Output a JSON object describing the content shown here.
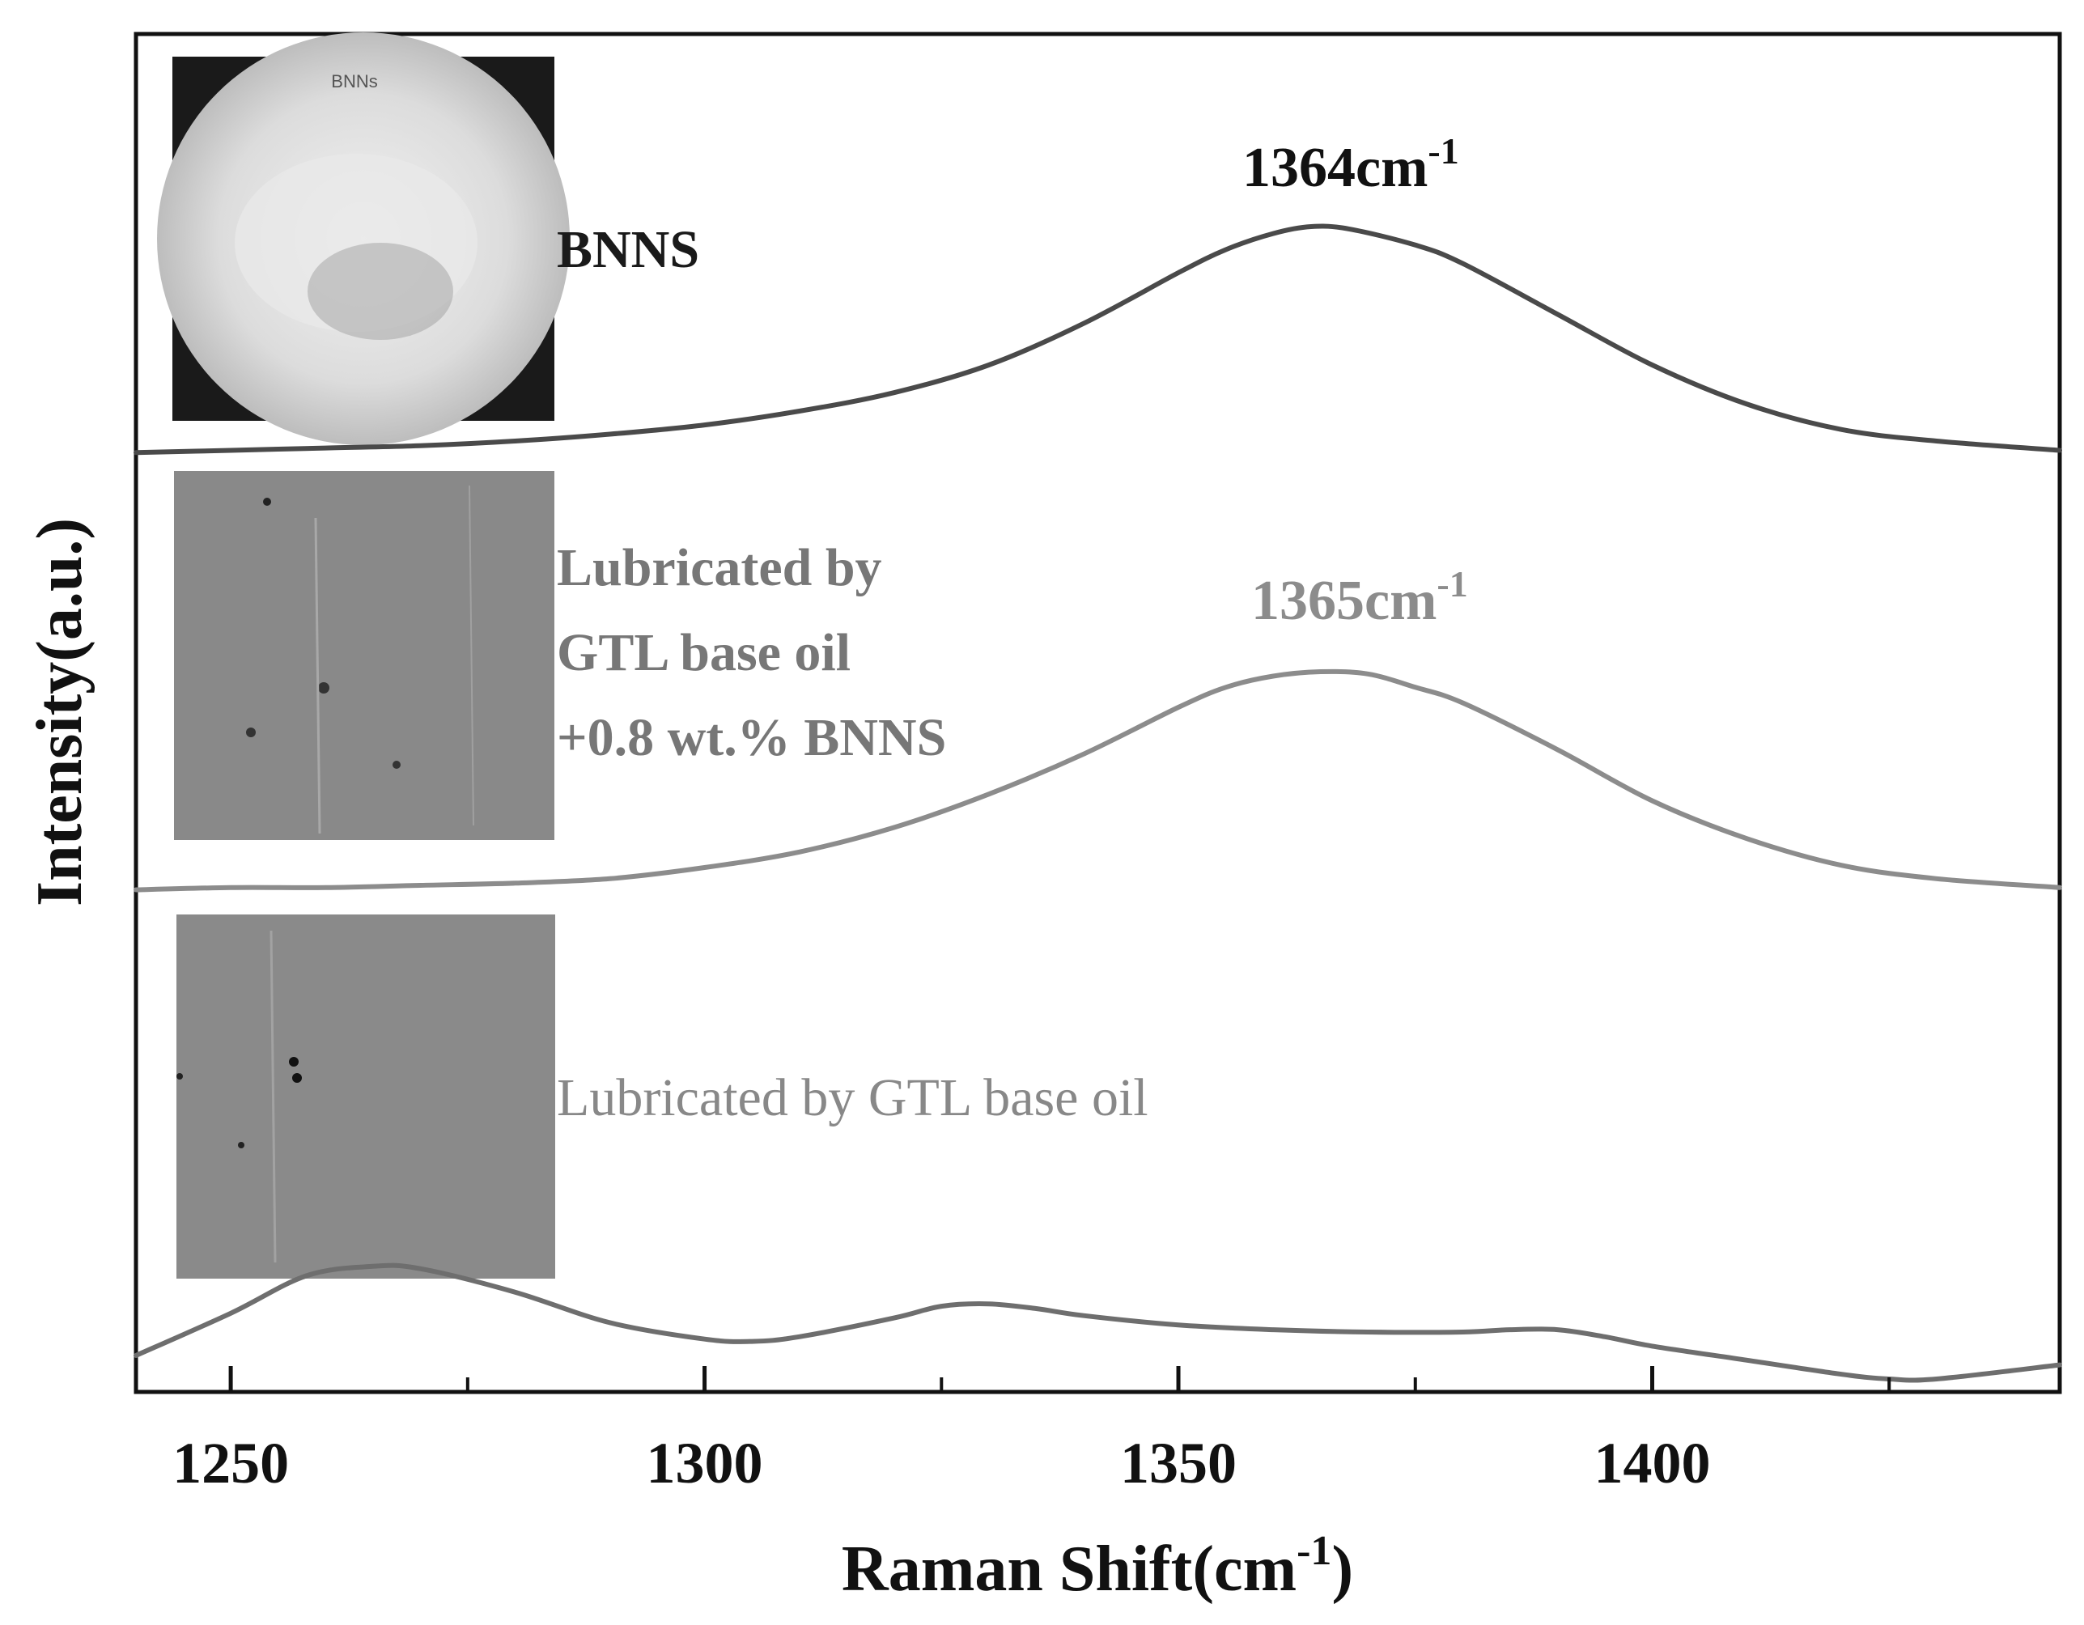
{
  "chart_data": {
    "type": "line",
    "title": "",
    "xlabel": "Raman Shift(cm",
    "xlabel_sup": "-1",
    "xlabel_suffix": ")",
    "ylabel": "Intensity(a.u.)",
    "xlim": [
      1240,
      1443
    ],
    "x_ticks": [
      1250,
      1300,
      1350,
      1400
    ],
    "x_tick_labels": [
      "1250",
      "1300",
      "1350",
      "1400"
    ],
    "y_ticks_shown": false,
    "grid": false,
    "stacked_offset": true,
    "series": [
      {
        "name": "BNNS",
        "color": "#4a4a4a",
        "label_weight": "bold",
        "peak_label": "1364cm",
        "peak_label_sup": "-1",
        "inset": "BNNS powder photo",
        "inset_text": "BNNs",
        "x": [
          1240,
          1250,
          1260,
          1270,
          1280,
          1290,
          1300,
          1310,
          1320,
          1330,
          1340,
          1350,
          1355,
          1360,
          1364,
          1368,
          1375,
          1380,
          1390,
          1400,
          1410,
          1420,
          1430,
          1443
        ],
        "y": [
          0.02,
          0.03,
          0.04,
          0.05,
          0.07,
          0.1,
          0.14,
          0.2,
          0.28,
          0.4,
          0.58,
          0.8,
          0.9,
          0.97,
          1.0,
          0.99,
          0.92,
          0.84,
          0.62,
          0.4,
          0.23,
          0.12,
          0.07,
          0.03
        ]
      },
      {
        "name": "Lubricated by GTL base oil +0.8 wt.% BNNS",
        "name_lines": [
          "Lubricated by",
          "GTL base oil",
          "+0.8 wt.% BNNS"
        ],
        "color": "#8c8c8c",
        "label_weight": "bold",
        "peak_label": "1365cm",
        "peak_label_sup": "-1",
        "inset": "wear scar photo",
        "x": [
          1240,
          1250,
          1260,
          1270,
          1280,
          1290,
          1300,
          1310,
          1320,
          1330,
          1340,
          1350,
          1355,
          1360,
          1365,
          1370,
          1375,
          1380,
          1390,
          1400,
          1410,
          1420,
          1430,
          1443
        ],
        "y": [
          0.02,
          0.03,
          0.03,
          0.04,
          0.05,
          0.07,
          0.12,
          0.19,
          0.3,
          0.45,
          0.63,
          0.84,
          0.93,
          0.98,
          1.0,
          0.99,
          0.93,
          0.86,
          0.65,
          0.42,
          0.25,
          0.13,
          0.07,
          0.03
        ]
      },
      {
        "name": "Lubricated by GTL base oil",
        "color": "#6e6e6e",
        "label_weight": "normal",
        "inset": "wear scar photo",
        "x": [
          1240,
          1250,
          1258,
          1265,
          1270,
          1280,
          1290,
          1300,
          1305,
          1310,
          1320,
          1325,
          1330,
          1335,
          1340,
          1350,
          1360,
          1370,
          1380,
          1385,
          1390,
          1395,
          1400,
          1410,
          1420,
          1425,
          1430,
          1443
        ],
        "y": [
          0.0,
          0.18,
          0.34,
          0.38,
          0.37,
          0.27,
          0.14,
          0.07,
          0.06,
          0.08,
          0.16,
          0.21,
          0.22,
          0.2,
          0.17,
          0.13,
          0.11,
          0.1,
          0.1,
          0.11,
          0.11,
          0.08,
          0.04,
          -0.02,
          -0.08,
          -0.1,
          -0.1,
          -0.04
        ]
      }
    ]
  }
}
